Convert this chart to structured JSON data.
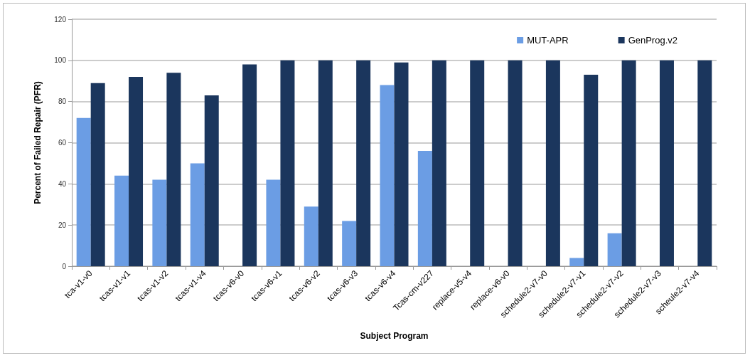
{
  "chart_data": {
    "type": "bar",
    "xlabel": "Subject Program",
    "ylabel": "Percent of Failed Repair (PFR)",
    "categories": [
      "tca-v1-v0",
      "tcas-v1-v1",
      "tcas-v1-v2",
      "tcas-v1-v4",
      "tcas-v6-v0",
      "tcas-v6-v1",
      "tcas-v6-v2",
      "tcas-v6-v3",
      "tcas-v6-v4",
      "Tcas-cm-v227",
      "replace-v5-v4",
      "replace-v6-v0",
      "schedule2-v7-v0",
      "schedule2-v7-v1",
      "schedule2-v7-v2",
      "schedule2-v7-v3",
      "scheule2-v7-v4"
    ],
    "series": [
      {
        "name": "MUT-APR",
        "color": "#6b9de4",
        "values": [
          72,
          44,
          42,
          50,
          0,
          42,
          29,
          22,
          88,
          56,
          0,
          0,
          0,
          4,
          16,
          0,
          0
        ]
      },
      {
        "name": "GenProg.v2",
        "color": "#1b365d",
        "values": [
          89,
          92,
          94,
          83,
          98,
          100,
          100,
          100,
          99,
          100,
          100,
          100,
          100,
          93,
          100,
          100,
          100
        ]
      }
    ],
    "ylim": [
      0,
      120
    ],
    "yticks": [
      0,
      20,
      40,
      60,
      80,
      100,
      120
    ],
    "grid": "y",
    "legend": "top right"
  }
}
